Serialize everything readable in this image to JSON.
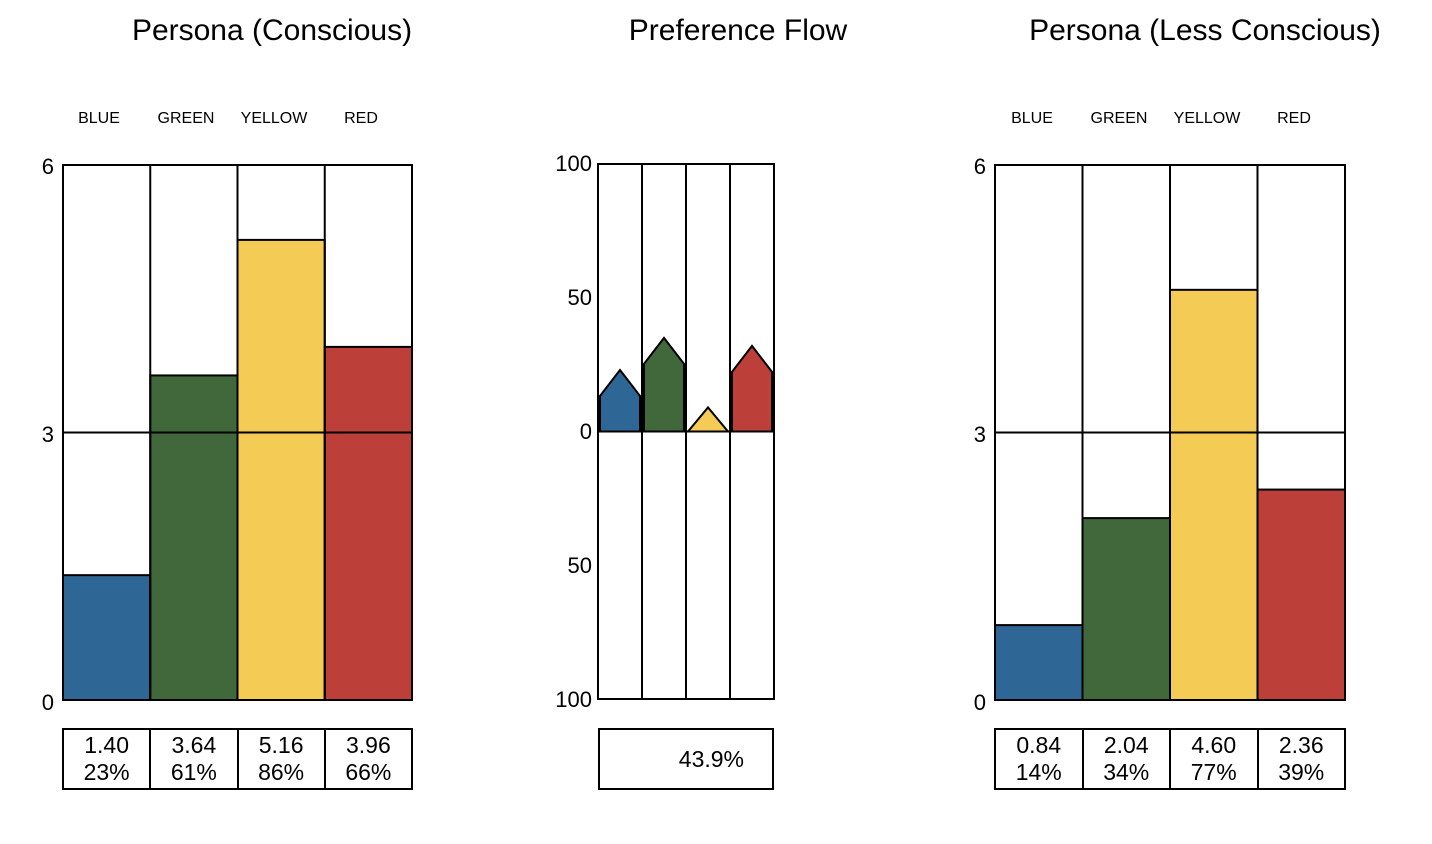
{
  "colors": {
    "blue": "#2e6796",
    "green": "#41683a",
    "yellow": "#f4cc55",
    "red": "#bd3f3a",
    "line": "#000000"
  },
  "chart_data": [
    {
      "type": "bar",
      "title": "Persona (Conscious)",
      "categories": [
        "BLUE",
        "GREEN",
        "YELLOW",
        "RED"
      ],
      "values": [
        1.4,
        3.64,
        5.16,
        3.96
      ],
      "value_labels": [
        "1.40",
        "3.64",
        "5.16",
        "3.96"
      ],
      "percent_labels": [
        "23%",
        "61%",
        "86%",
        "66%"
      ],
      "yticks": [
        "0",
        "3",
        "6"
      ],
      "ylim": [
        0,
        6
      ],
      "grid": true
    },
    {
      "type": "bar",
      "title": "Preference Flow",
      "categories": [
        "BLUE",
        "GREEN",
        "YELLOW",
        "RED"
      ],
      "values": [
        23,
        35,
        9,
        32
      ],
      "yticks": [
        "100",
        "50",
        "0",
        "50",
        "100"
      ],
      "ylim": [
        -100,
        100
      ],
      "summary": "43.9%"
    },
    {
      "type": "bar",
      "title": "Persona (Less Conscious)",
      "categories": [
        "BLUE",
        "GREEN",
        "YELLOW",
        "RED"
      ],
      "values": [
        0.84,
        2.04,
        4.6,
        2.36
      ],
      "value_labels": [
        "0.84",
        "2.04",
        "4.60",
        "2.36"
      ],
      "percent_labels": [
        "14%",
        "34%",
        "77%",
        "39%"
      ],
      "yticks": [
        "0",
        "3",
        "6"
      ],
      "ylim": [
        0,
        6
      ],
      "grid": true
    }
  ]
}
